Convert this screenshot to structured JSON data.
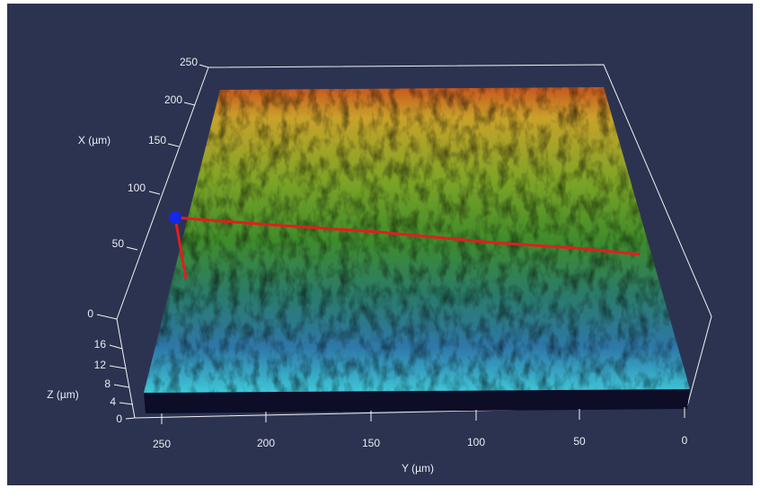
{
  "axes": {
    "x": {
      "title": "X (µm)",
      "ticks": [
        250,
        200,
        150,
        100,
        50,
        0
      ]
    },
    "z": {
      "title": "Z (µm)",
      "ticks": [
        16,
        12,
        8,
        4,
        0
      ]
    },
    "y": {
      "title": "Y (µm)",
      "ticks": [
        250,
        200,
        150,
        100,
        50,
        0
      ]
    }
  }
}
